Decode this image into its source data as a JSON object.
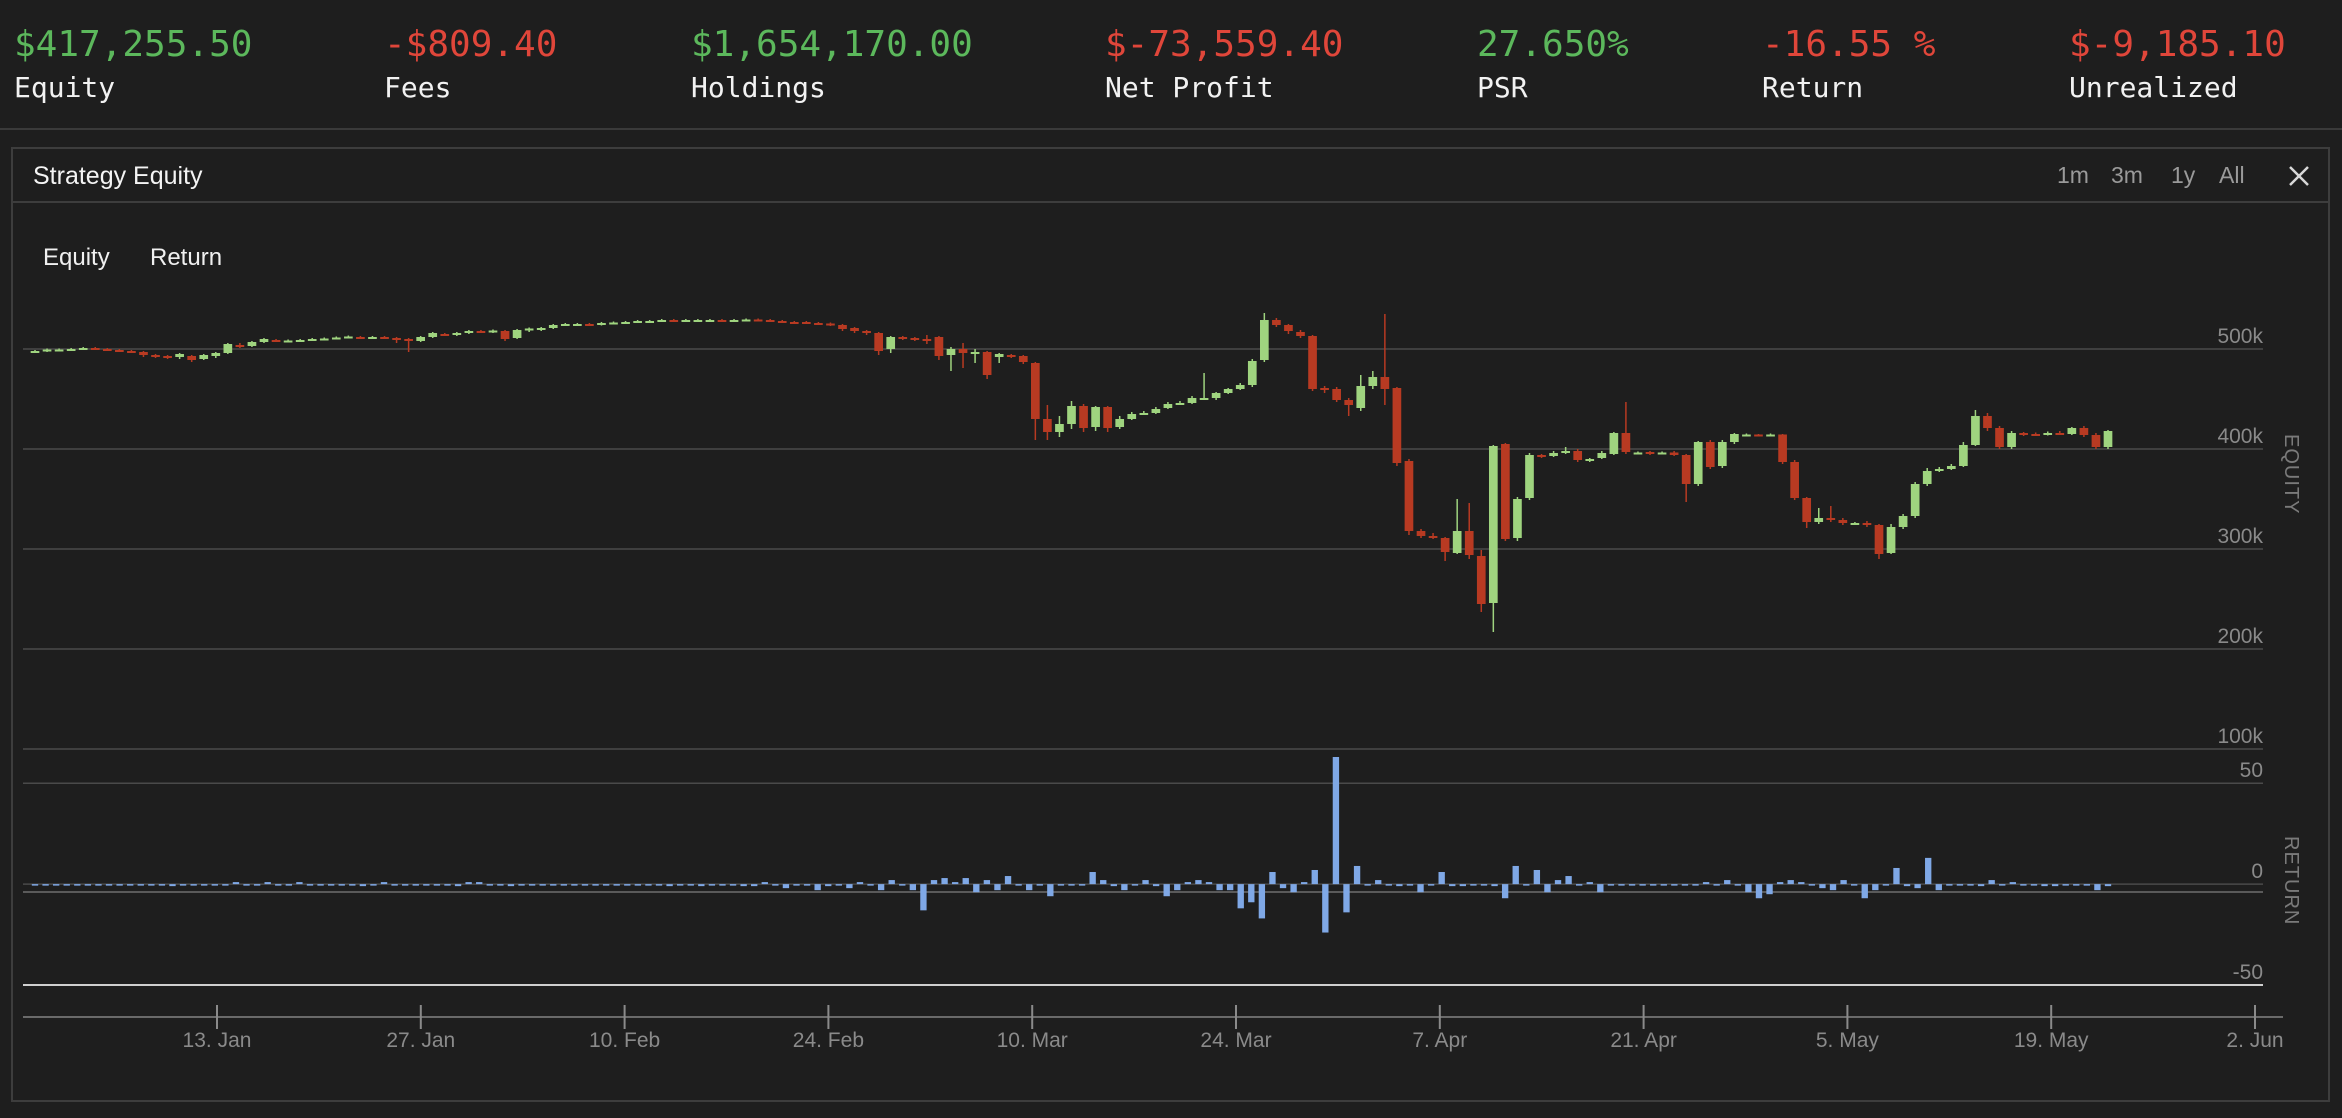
{
  "stats": [
    {
      "value": "$417,255.50",
      "label": "Equity",
      "tone": "pos"
    },
    {
      "value": "-$809.40",
      "label": "Fees",
      "tone": "neg"
    },
    {
      "value": "$1,654,170.00",
      "label": "Holdings",
      "tone": "pos"
    },
    {
      "value": "$-73,559.40",
      "label": "Net Profit",
      "tone": "neg"
    },
    {
      "value": "27.650%",
      "label": "PSR",
      "tone": "pos"
    },
    {
      "value": "-16.55 %",
      "label": "Return",
      "tone": "neg"
    },
    {
      "value": "$-9,185.10",
      "label": "Unrealized",
      "tone": "neg"
    }
  ],
  "panel": {
    "title": "Strategy Equity",
    "ranges": [
      "1m",
      "3m",
      "1y",
      "All"
    ],
    "close_icon": "close-icon"
  },
  "legend": [
    "Equity",
    "Return"
  ],
  "colors": {
    "up": "#9fd47f",
    "down": "#b83a22",
    "return_bar": "#7fa8e6",
    "positive_stat": "#5cb85c",
    "negative_stat": "#e0463a"
  },
  "chart_data": {
    "type": "candlestick+bar",
    "x_ticks": [
      "13. Jan",
      "27. Jan",
      "10. Feb",
      "24. Feb",
      "10. Mar",
      "24. Mar",
      "7. Apr",
      "21. Apr",
      "5. May",
      "19. May",
      "2. Jun"
    ],
    "equity": {
      "axis_title": "EQUITY",
      "ticks": [
        "100k",
        "200k",
        "300k",
        "400k",
        "500k"
      ],
      "ylim": [
        100000,
        540000
      ],
      "candles": [
        [
          497000,
          498000,
          499000,
          496000
        ],
        [
          498000,
          499500,
          500500,
          497000
        ],
        [
          499000,
          499500,
          500500,
          498000
        ],
        [
          499500,
          500000,
          501000,
          498500
        ],
        [
          500000,
          501000,
          502000,
          499000
        ],
        [
          501000,
          500000,
          502000,
          499000
        ],
        [
          500000,
          499000,
          501000,
          498000
        ],
        [
          499000,
          498000,
          500000,
          497000
        ],
        [
          498000,
          497000,
          499000,
          496000
        ],
        [
          497000,
          494000,
          498000,
          492000
        ],
        [
          494000,
          493000,
          495000,
          491000
        ],
        [
          493000,
          492000,
          494000,
          490000
        ],
        [
          492000,
          495000,
          496000,
          490000
        ],
        [
          493000,
          489000,
          494000,
          487000
        ],
        [
          490000,
          494000,
          495000,
          489000
        ],
        [
          493000,
          496000,
          497000,
          491000
        ],
        [
          496000,
          505000,
          506000,
          495000
        ],
        [
          504000,
          503000,
          506000,
          501000
        ],
        [
          503000,
          507000,
          508000,
          502000
        ],
        [
          507000,
          510000,
          511000,
          506000
        ],
        [
          509000,
          508000,
          510000,
          507000
        ],
        [
          508000,
          508500,
          509500,
          507000
        ],
        [
          508500,
          509000,
          510000,
          507500
        ],
        [
          509000,
          510000,
          511000,
          508000
        ],
        [
          510000,
          510500,
          511500,
          509000
        ],
        [
          510500,
          511500,
          512500,
          510000
        ],
        [
          511500,
          512500,
          513500,
          510500
        ],
        [
          512000,
          511000,
          513000,
          510000
        ],
        [
          511000,
          512000,
          513000,
          510000
        ],
        [
          512000,
          511000,
          513000,
          510000
        ],
        [
          511000,
          510000,
          512000,
          506000
        ],
        [
          510000,
          508000,
          511000,
          497000
        ],
        [
          508000,
          512000,
          513000,
          507000
        ],
        [
          512000,
          516000,
          517000,
          511000
        ],
        [
          515000,
          514000,
          516000,
          513000
        ],
        [
          514000,
          516000,
          517000,
          513000
        ],
        [
          516000,
          518000,
          519000,
          515000
        ],
        [
          518000,
          517000,
          519000,
          516000
        ],
        [
          517000,
          518500,
          519500,
          516000
        ],
        [
          518000,
          510000,
          519000,
          508000
        ],
        [
          511000,
          519000,
          520000,
          510000
        ],
        [
          519000,
          520500,
          521500,
          517000
        ],
        [
          520500,
          521000,
          522000,
          518000
        ],
        [
          521000,
          524000,
          525000,
          520000
        ],
        [
          524000,
          525000,
          526000,
          523000
        ],
        [
          524000,
          525000,
          526000,
          523000
        ],
        [
          525000,
          524500,
          526000,
          523000
        ],
        [
          524500,
          526000,
          527000,
          523500
        ],
        [
          526000,
          526500,
          527500,
          525000
        ],
        [
          526500,
          527000,
          528000,
          526000
        ],
        [
          527000,
          528000,
          529000,
          526000
        ],
        [
          528000,
          528000,
          529000,
          527000
        ],
        [
          528000,
          529000,
          530000,
          527000
        ],
        [
          529000,
          528500,
          530000,
          527500
        ],
        [
          528500,
          529000,
          530000,
          527500
        ],
        [
          529000,
          529000,
          530000,
          528000
        ],
        [
          529000,
          529000,
          530000,
          528000
        ],
        [
          529000,
          528500,
          530000,
          527500
        ],
        [
          528500,
          529000,
          530000,
          527500
        ],
        [
          529000,
          529500,
          530500,
          528000
        ],
        [
          529500,
          529000,
          530500,
          528000
        ],
        [
          529000,
          528000,
          530000,
          527000
        ],
        [
          528000,
          527000,
          529000,
          526000
        ],
        [
          527000,
          526000,
          528000,
          525000
        ],
        [
          527000,
          526000,
          528000,
          525000
        ],
        [
          526000,
          525500,
          527000,
          524000
        ],
        [
          525500,
          524000,
          526500,
          523000
        ],
        [
          524000,
          520000,
          525000,
          518000
        ],
        [
          521000,
          518000,
          522000,
          516000
        ],
        [
          518000,
          516000,
          519000,
          514000
        ],
        [
          516000,
          498000,
          517000,
          494000
        ],
        [
          500000,
          512000,
          513000,
          496000
        ],
        [
          512000,
          511000,
          513000,
          509000
        ],
        [
          511000,
          510000,
          512000,
          508000
        ],
        [
          510000,
          508000,
          514000,
          505000
        ],
        [
          512000,
          493000,
          513000,
          489000
        ],
        [
          494000,
          500000,
          502000,
          478000
        ],
        [
          500000,
          496000,
          506000,
          481000
        ],
        [
          496000,
          497000,
          500000,
          486000
        ],
        [
          497000,
          474000,
          498000,
          470000
        ],
        [
          492000,
          495000,
          496000,
          486000
        ],
        [
          494000,
          493000,
          495000,
          491000
        ],
        [
          493000,
          487000,
          494000,
          485000
        ],
        [
          486000,
          430000,
          487000,
          409000
        ],
        [
          430000,
          417000,
          444000,
          409000
        ],
        [
          417000,
          425000,
          433000,
          412000
        ],
        [
          425000,
          443000,
          448000,
          420000
        ],
        [
          443000,
          421000,
          445000,
          417000
        ],
        [
          422000,
          442000,
          443000,
          418000
        ],
        [
          442000,
          421000,
          443000,
          417000
        ],
        [
          422000,
          430000,
          433000,
          420000
        ],
        [
          430000,
          435000,
          437000,
          429000
        ],
        [
          435000,
          436000,
          438000,
          434000
        ],
        [
          436000,
          440000,
          442000,
          435000
        ],
        [
          441000,
          445000,
          447000,
          440000
        ],
        [
          445000,
          446000,
          448000,
          444000
        ],
        [
          446000,
          451000,
          453000,
          445000
        ],
        [
          450000,
          451000,
          476000,
          449000
        ],
        [
          451000,
          456000,
          457000,
          449000
        ],
        [
          456000,
          460000,
          461000,
          455000
        ],
        [
          460000,
          464000,
          466000,
          459000
        ],
        [
          464000,
          488000,
          490000,
          462000
        ],
        [
          489000,
          529000,
          536000,
          487000
        ],
        [
          529000,
          524000,
          531000,
          522000
        ],
        [
          524000,
          518000,
          525000,
          515000
        ],
        [
          517000,
          513000,
          519000,
          511000
        ],
        [
          513000,
          460000,
          514000,
          458000
        ],
        [
          461000,
          459000,
          463000,
          456000
        ],
        [
          460000,
          449000,
          462000,
          447000
        ],
        [
          449000,
          444000,
          451000,
          433000
        ],
        [
          441000,
          463000,
          474000,
          438000
        ],
        [
          463000,
          472000,
          478000,
          460000
        ],
        [
          472000,
          460000,
          535000,
          444000
        ],
        [
          461000,
          386000,
          462000,
          383000
        ],
        [
          388000,
          318000,
          390000,
          314000
        ],
        [
          318000,
          313000,
          320000,
          311000
        ],
        [
          313000,
          311000,
          316000,
          310000
        ],
        [
          311000,
          297000,
          312000,
          288000
        ],
        [
          296000,
          318000,
          350000,
          295000
        ],
        [
          318000,
          294000,
          346000,
          290000
        ],
        [
          293000,
          245000,
          299000,
          237000
        ],
        [
          246000,
          403000,
          404000,
          217000
        ],
        [
          405000,
          310000,
          406000,
          308000
        ],
        [
          311000,
          350000,
          352000,
          308000
        ],
        [
          351000,
          394000,
          396000,
          349000
        ],
        [
          394000,
          393000,
          395000,
          391000
        ],
        [
          393000,
          396000,
          398000,
          392000
        ],
        [
          396000,
          398000,
          402000,
          395000
        ],
        [
          398000,
          389000,
          400000,
          387000
        ],
        [
          389000,
          390000,
          391000,
          387000
        ],
        [
          391000,
          396000,
          398000,
          390000
        ],
        [
          395000,
          416000,
          417000,
          394000
        ],
        [
          416000,
          397000,
          447000,
          395000
        ],
        [
          396000,
          396500,
          397500,
          395000
        ],
        [
          397000,
          396000,
          398000,
          394000
        ],
        [
          396000,
          396500,
          397500,
          395000
        ],
        [
          396500,
          394000,
          398000,
          393000
        ],
        [
          394000,
          365000,
          395000,
          347000
        ],
        [
          365000,
          407000,
          408000,
          363000
        ],
        [
          407000,
          382000,
          409000,
          380000
        ],
        [
          383000,
          407000,
          409000,
          381000
        ],
        [
          407000,
          415000,
          416000,
          405000
        ],
        [
          414000,
          414500,
          415500,
          413000
        ],
        [
          414500,
          414000,
          415000,
          413000
        ],
        [
          414000,
          414500,
          415500,
          413000
        ],
        [
          414500,
          387000,
          415000,
          385000
        ],
        [
          387000,
          351000,
          389000,
          349000
        ],
        [
          351000,
          327000,
          352000,
          321000
        ],
        [
          327000,
          331000,
          341000,
          325000
        ],
        [
          331000,
          329000,
          343000,
          327000
        ],
        [
          329000,
          326000,
          331000,
          324000
        ],
        [
          326000,
          326000,
          327000,
          325000
        ],
        [
          326000,
          324000,
          328000,
          322000
        ],
        [
          324000,
          295000,
          325000,
          290000
        ],
        [
          296000,
          322000,
          325000,
          295000
        ],
        [
          322000,
          333000,
          335000,
          320000
        ],
        [
          333000,
          365000,
          367000,
          331000
        ],
        [
          365000,
          378000,
          381000,
          363000
        ],
        [
          378000,
          380000,
          382000,
          377000
        ],
        [
          380000,
          383000,
          385000,
          379000
        ],
        [
          383000,
          404000,
          407000,
          382000
        ],
        [
          404000,
          433000,
          439000,
          403000
        ],
        [
          433000,
          421000,
          436000,
          418000
        ],
        [
          421000,
          402000,
          423000,
          400000
        ],
        [
          402000,
          416000,
          418000,
          400000
        ],
        [
          416000,
          415000,
          417000,
          413000
        ],
        [
          415000,
          414500,
          416500,
          413000
        ],
        [
          414500,
          416000,
          417500,
          413500
        ],
        [
          416000,
          415000,
          418000,
          414000
        ],
        [
          415000,
          421000,
          422000,
          414000
        ],
        [
          421000,
          414000,
          423000,
          412000
        ],
        [
          414000,
          402000,
          416000,
          400000
        ],
        [
          402000,
          418000,
          419000,
          400000
        ]
      ]
    },
    "returns": {
      "axis_title": "RETURN",
      "ticks": [
        "-50",
        "0",
        "50"
      ],
      "ylim": [
        -50,
        63
      ],
      "values": [
        0,
        0,
        0,
        0,
        0,
        0,
        0,
        0,
        0,
        0,
        0,
        0,
        0,
        -1,
        0,
        0,
        0,
        0,
        0,
        1,
        0,
        0,
        1,
        0,
        0,
        1,
        0,
        0,
        0,
        0,
        0,
        -1,
        0,
        1,
        0,
        0,
        0,
        0,
        0,
        0,
        -1,
        1,
        1,
        0,
        0,
        -1,
        0,
        0,
        0,
        0,
        0,
        0,
        0,
        0,
        0,
        0,
        0,
        0,
        0,
        0,
        -1,
        0,
        0,
        -1,
        0,
        0,
        0,
        -1,
        -1,
        1,
        0,
        -2,
        0,
        0,
        -3,
        -1,
        0,
        -2,
        1,
        0,
        -3,
        2,
        0,
        -3,
        -13,
        2,
        3,
        1,
        3,
        -4,
        2,
        -3,
        4,
        0,
        -3,
        0,
        -6,
        0,
        0,
        0,
        6,
        2,
        -1,
        -3,
        0,
        2,
        -1,
        -6,
        -3,
        1,
        2,
        1,
        -3,
        -3,
        -12,
        -9,
        -17,
        6,
        -2,
        -4,
        1,
        7,
        -24,
        63,
        -14,
        9,
        0,
        2,
        0,
        -1,
        0,
        -4,
        0,
        6,
        -1,
        -1,
        0,
        0,
        -1,
        -7,
        9,
        0,
        7,
        -4,
        2,
        4,
        0,
        1,
        -4,
        0,
        0,
        0,
        0,
        0,
        0,
        0,
        0,
        0,
        1,
        0,
        2,
        0,
        -4,
        -7,
        -5,
        1,
        2,
        1,
        0,
        -2,
        -3,
        2,
        0,
        -7,
        -3,
        0,
        8,
        -1,
        -2,
        13,
        -3,
        0,
        0,
        0,
        -1,
        2,
        0,
        1,
        0,
        0,
        -1,
        -1,
        0,
        0,
        0,
        -3,
        -1
      ]
    }
  }
}
